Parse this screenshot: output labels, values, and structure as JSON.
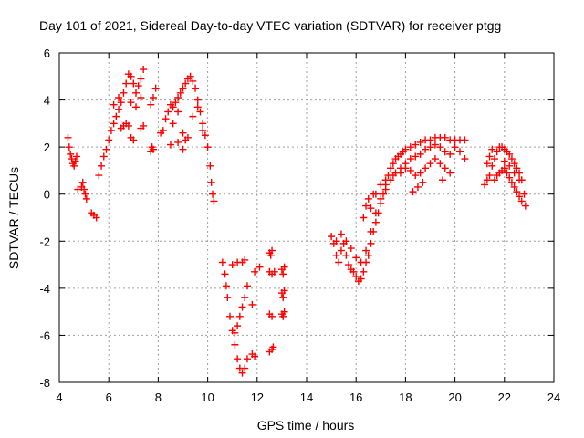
{
  "chart_data": {
    "type": "scatter",
    "title": "Day 101 of 2021, Sidereal Day-to-day VTEC variation (SDTVAR) for receiver ptgg",
    "xlabel": "GPS time / hours",
    "ylabel": "SDTVAR / TECUs",
    "xlim": [
      4,
      24
    ],
    "ylim": [
      -8,
      6
    ],
    "xticks": [
      4,
      6,
      8,
      10,
      12,
      14,
      16,
      18,
      20,
      22,
      24
    ],
    "yticks": [
      -8,
      -6,
      -4,
      -2,
      0,
      2,
      4,
      6
    ],
    "grid": true,
    "marker": "+",
    "series": [
      {
        "name": "SDTVAR",
        "color": "#ff0000",
        "points": [
          [
            4.35,
            2.4
          ],
          [
            4.4,
            2.0
          ],
          [
            4.45,
            1.7
          ],
          [
            4.5,
            1.5
          ],
          [
            4.55,
            1.3
          ],
          [
            4.6,
            1.2
          ],
          [
            4.65,
            1.4
          ],
          [
            4.7,
            1.6
          ],
          [
            4.75,
            0.2
          ],
          [
            4.9,
            0.3
          ],
          [
            4.95,
            0.5
          ],
          [
            5.0,
            0.2
          ],
          [
            5.05,
            0.0
          ],
          [
            5.1,
            -0.2
          ],
          [
            5.3,
            -0.8
          ],
          [
            5.4,
            -0.9
          ],
          [
            5.5,
            -1.0
          ],
          [
            5.6,
            0.8
          ],
          [
            5.7,
            1.2
          ],
          [
            5.8,
            1.6
          ],
          [
            5.9,
            1.9
          ],
          [
            6.0,
            2.3
          ],
          [
            6.1,
            2.7
          ],
          [
            6.2,
            3.0
          ],
          [
            6.3,
            3.3
          ],
          [
            6.4,
            3.6
          ],
          [
            6.5,
            3.9
          ],
          [
            6.6,
            4.3
          ],
          [
            6.7,
            4.7
          ],
          [
            6.8,
            5.1
          ],
          [
            6.9,
            5.0
          ],
          [
            7.0,
            4.7
          ],
          [
            7.1,
            4.3
          ],
          [
            7.2,
            4.6
          ],
          [
            7.3,
            4.9
          ],
          [
            7.4,
            5.3
          ],
          [
            6.5,
            2.8
          ],
          [
            6.6,
            2.9
          ],
          [
            6.7,
            3.0
          ],
          [
            6.8,
            2.9
          ],
          [
            6.9,
            2.4
          ],
          [
            7.0,
            2.3
          ],
          [
            7.3,
            2.8
          ],
          [
            7.4,
            2.9
          ],
          [
            6.2,
            3.8
          ],
          [
            6.4,
            4.1
          ],
          [
            6.9,
            3.9
          ],
          [
            7.1,
            3.7
          ],
          [
            7.3,
            4.1
          ],
          [
            7.7,
            3.8
          ],
          [
            7.8,
            4.1
          ],
          [
            7.9,
            4.5
          ],
          [
            7.7,
            1.8
          ],
          [
            7.75,
            2.0
          ],
          [
            7.8,
            1.9
          ],
          [
            8.1,
            2.6
          ],
          [
            8.2,
            2.7
          ],
          [
            8.3,
            3.2
          ],
          [
            8.4,
            3.5
          ],
          [
            8.5,
            3.8
          ],
          [
            8.6,
            3.7
          ],
          [
            8.7,
            3.9
          ],
          [
            8.8,
            4.1
          ],
          [
            8.9,
            4.3
          ],
          [
            9.0,
            4.5
          ],
          [
            9.1,
            4.7
          ],
          [
            9.2,
            4.9
          ],
          [
            9.3,
            5.0
          ],
          [
            9.4,
            4.8
          ],
          [
            9.5,
            4.5
          ],
          [
            9.6,
            4.0
          ],
          [
            9.7,
            3.5
          ],
          [
            9.8,
            3.0
          ],
          [
            9.9,
            2.5
          ],
          [
            10.0,
            2.0
          ],
          [
            10.1,
            1.2
          ],
          [
            10.15,
            0.5
          ],
          [
            10.2,
            0.0
          ],
          [
            10.25,
            -0.3
          ],
          [
            8.6,
            3.0
          ],
          [
            8.8,
            3.5
          ],
          [
            9.0,
            2.6
          ],
          [
            9.1,
            2.3
          ],
          [
            9.2,
            2.4
          ],
          [
            9.4,
            3.3
          ],
          [
            9.6,
            3.7
          ],
          [
            9.8,
            2.7
          ],
          [
            8.5,
            2.1
          ],
          [
            8.8,
            2.2
          ],
          [
            9.0,
            1.9
          ],
          [
            10.6,
            -2.9
          ],
          [
            10.7,
            -3.4
          ],
          [
            10.75,
            -3.9
          ],
          [
            10.8,
            -4.4
          ],
          [
            10.9,
            -5.2
          ],
          [
            11.0,
            -5.8
          ],
          [
            11.1,
            -6.4
          ],
          [
            11.2,
            -7.0
          ],
          [
            11.3,
            -7.4
          ],
          [
            11.4,
            -7.6
          ],
          [
            11.5,
            -7.4
          ],
          [
            11.6,
            -7.0
          ],
          [
            11.1,
            -5.9
          ],
          [
            11.2,
            -5.6
          ],
          [
            11.3,
            -5.2
          ],
          [
            11.4,
            -4.8
          ],
          [
            11.5,
            -4.4
          ],
          [
            11.6,
            -3.9
          ],
          [
            11.0,
            -3.0
          ],
          [
            11.2,
            -2.9
          ],
          [
            11.4,
            -2.9
          ],
          [
            11.5,
            -2.8
          ],
          [
            11.8,
            -4.7
          ],
          [
            11.9,
            -3.3
          ],
          [
            11.8,
            -6.8
          ],
          [
            11.9,
            -6.9
          ],
          [
            12.1,
            -3.1
          ],
          [
            12.5,
            -2.5
          ],
          [
            12.55,
            -2.6
          ],
          [
            12.6,
            -2.4
          ],
          [
            12.5,
            -3.3
          ],
          [
            12.6,
            -3.4
          ],
          [
            12.7,
            -3.3
          ],
          [
            12.5,
            -5.1
          ],
          [
            12.6,
            -5.2
          ],
          [
            12.5,
            -6.7
          ],
          [
            12.6,
            -6.6
          ],
          [
            12.65,
            -6.5
          ],
          [
            13.0,
            -3.2
          ],
          [
            13.05,
            -3.4
          ],
          [
            13.1,
            -3.1
          ],
          [
            13.0,
            -4.2
          ],
          [
            13.05,
            -4.4
          ],
          [
            13.1,
            -4.1
          ],
          [
            13.0,
            -5.1
          ],
          [
            13.05,
            -5.2
          ],
          [
            13.1,
            -5.0
          ],
          [
            15.0,
            -1.8
          ],
          [
            15.1,
            -2.1
          ],
          [
            15.2,
            -2.6
          ],
          [
            15.3,
            -2.9
          ],
          [
            15.4,
            -2.4
          ],
          [
            15.5,
            -2.1
          ],
          [
            15.6,
            -2.6
          ],
          [
            15.7,
            -3.0
          ],
          [
            15.8,
            -3.2
          ],
          [
            15.9,
            -3.3
          ],
          [
            16.0,
            -3.5
          ],
          [
            16.1,
            -3.7
          ],
          [
            16.2,
            -3.6
          ],
          [
            16.3,
            -3.3
          ],
          [
            16.4,
            -2.9
          ],
          [
            16.5,
            -2.6
          ],
          [
            16.6,
            -2.1
          ],
          [
            16.7,
            -1.6
          ],
          [
            16.8,
            -1.2
          ],
          [
            16.9,
            -0.8
          ],
          [
            17.0,
            -0.4
          ],
          [
            17.1,
            0.0
          ],
          [
            17.2,
            0.4
          ],
          [
            17.3,
            0.8
          ],
          [
            17.4,
            1.1
          ],
          [
            17.5,
            1.3
          ],
          [
            17.6,
            1.5
          ],
          [
            17.7,
            1.6
          ],
          [
            17.8,
            1.7
          ],
          [
            17.9,
            1.8
          ],
          [
            18.0,
            1.9
          ],
          [
            18.2,
            2.0
          ],
          [
            18.4,
            2.1
          ],
          [
            18.6,
            2.2
          ],
          [
            18.8,
            2.3
          ],
          [
            19.0,
            2.3
          ],
          [
            19.2,
            2.4
          ],
          [
            19.4,
            2.4
          ],
          [
            19.6,
            2.4
          ],
          [
            19.8,
            2.3
          ],
          [
            20.0,
            2.3
          ],
          [
            20.2,
            2.3
          ],
          [
            20.4,
            2.3
          ],
          [
            15.2,
            -2.0
          ],
          [
            15.4,
            -1.7
          ],
          [
            15.6,
            -2.0
          ],
          [
            15.8,
            -2.3
          ],
          [
            16.0,
            -2.7
          ],
          [
            16.2,
            -2.9
          ],
          [
            16.4,
            -2.4
          ],
          [
            16.6,
            -1.6
          ],
          [
            16.8,
            -0.8
          ],
          [
            17.0,
            -0.2
          ],
          [
            17.2,
            0.2
          ],
          [
            17.4,
            0.6
          ],
          [
            17.6,
            0.9
          ],
          [
            17.8,
            1.1
          ],
          [
            18.0,
            1.3
          ],
          [
            18.2,
            1.5
          ],
          [
            18.4,
            1.6
          ],
          [
            18.6,
            1.7
          ],
          [
            18.8,
            1.9
          ],
          [
            19.0,
            2.0
          ],
          [
            19.2,
            2.1
          ],
          [
            19.4,
            2.0
          ],
          [
            19.6,
            1.8
          ],
          [
            19.8,
            1.7
          ],
          [
            20.0,
            2.0
          ],
          [
            20.2,
            1.8
          ],
          [
            20.4,
            1.5
          ],
          [
            16.6,
            -0.6
          ],
          [
            16.8,
            0.0
          ],
          [
            17.0,
            0.4
          ],
          [
            17.2,
            0.6
          ],
          [
            17.5,
            0.8
          ],
          [
            17.8,
            0.9
          ],
          [
            18.0,
            1.1
          ],
          [
            18.2,
            1.0
          ],
          [
            18.4,
            0.8
          ],
          [
            18.6,
            0.9
          ],
          [
            18.8,
            1.1
          ],
          [
            19.0,
            1.3
          ],
          [
            19.2,
            1.5
          ],
          [
            19.4,
            1.3
          ],
          [
            19.6,
            1.1
          ],
          [
            19.8,
            0.9
          ],
          [
            19.5,
            0.6
          ],
          [
            16.3,
            -1.0
          ],
          [
            16.4,
            -0.5
          ],
          [
            16.5,
            -0.2
          ],
          [
            16.7,
            0.0
          ],
          [
            18.3,
            0.1
          ],
          [
            18.5,
            0.3
          ],
          [
            18.7,
            0.5
          ],
          [
            21.2,
            0.4
          ],
          [
            21.3,
            0.6
          ],
          [
            21.4,
            0.8
          ],
          [
            21.5,
            1.2
          ],
          [
            21.6,
            1.5
          ],
          [
            21.7,
            1.8
          ],
          [
            21.8,
            2.0
          ],
          [
            21.9,
            2.0
          ],
          [
            22.0,
            1.9
          ],
          [
            22.1,
            1.8
          ],
          [
            22.2,
            1.7
          ],
          [
            22.3,
            1.5
          ],
          [
            22.4,
            1.3
          ],
          [
            22.5,
            1.1
          ],
          [
            22.6,
            0.9
          ],
          [
            22.7,
            0.6
          ],
          [
            22.8,
            0.0
          ],
          [
            22.85,
            -0.5
          ],
          [
            21.6,
            0.6
          ],
          [
            21.7,
            0.8
          ],
          [
            21.8,
            0.9
          ],
          [
            21.9,
            1.0
          ],
          [
            22.0,
            1.1
          ],
          [
            22.1,
            0.9
          ],
          [
            22.2,
            0.7
          ],
          [
            22.3,
            0.5
          ],
          [
            22.4,
            0.3
          ],
          [
            22.5,
            0.1
          ],
          [
            22.6,
            -0.1
          ],
          [
            22.7,
            -0.3
          ],
          [
            21.3,
            1.3
          ],
          [
            21.4,
            1.6
          ],
          [
            21.5,
            1.9
          ],
          [
            22.0,
            1.4
          ],
          [
            22.2,
            1.2
          ],
          [
            22.4,
            0.9
          ],
          [
            22.6,
            0.6
          ]
        ]
      }
    ]
  }
}
